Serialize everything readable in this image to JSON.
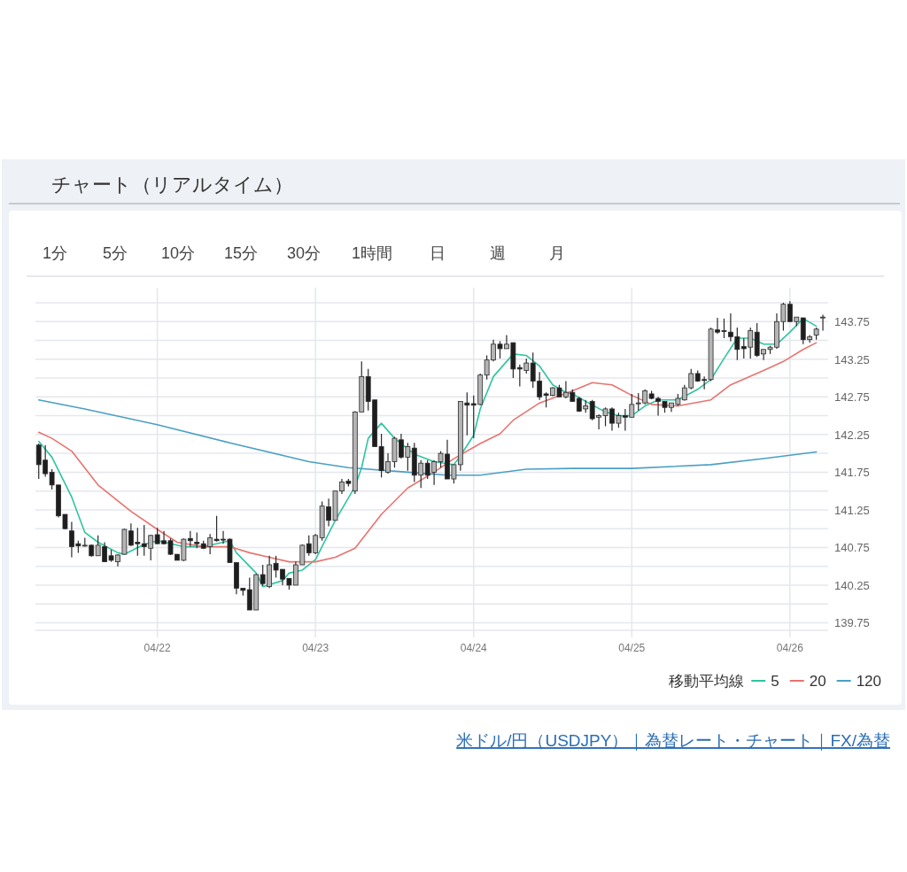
{
  "chart_data": {
    "type": "candlestick",
    "title": "チャート（リアルタイム）",
    "x": [
      "--04-21T06:00",
      "--04-21T07:00",
      "--04-21T08:00",
      "--04-21T09:00",
      "--04-21T10:00",
      "--04-21T11:00",
      "--04-21T12:00",
      "--04-21T13:00",
      "--04-21T14:00",
      "--04-21T15:00",
      "--04-21T16:00",
      "--04-21T17:00",
      "--04-21T18:00",
      "--04-21T19:00",
      "--04-21T20:00",
      "--04-21T21:00",
      "--04-21T22:00",
      "--04-21T23:00",
      "--04-22T00:00",
      "--04-22T01:00",
      "--04-22T02:00",
      "--04-22T03:00",
      "--04-22T04:00",
      "--04-22T05:00",
      "--04-22T06:00",
      "--04-22T07:00",
      "--04-22T08:00",
      "--04-22T09:00",
      "--04-22T10:00",
      "--04-22T11:00",
      "--04-22T12:00",
      "--04-22T13:00",
      "--04-22T14:00",
      "--04-22T15:00",
      "--04-22T16:00",
      "--04-22T17:00",
      "--04-22T18:00",
      "--04-22T19:00",
      "--04-22T20:00",
      "--04-22T21:00",
      "--04-22T22:00",
      "--04-22T23:00",
      "--04-23T00:00",
      "--04-23T01:00",
      "--04-23T02:00",
      "--04-23T03:00",
      "--04-23T04:00",
      "--04-23T05:00",
      "--04-23T06:00",
      "--04-23T07:00",
      "--04-23T08:00",
      "--04-23T09:00",
      "--04-23T10:00",
      "--04-23T11:00",
      "--04-23T12:00",
      "--04-23T13:00",
      "--04-23T14:00",
      "--04-23T15:00",
      "--04-23T16:00",
      "--04-23T17:00",
      "--04-23T18:00",
      "--04-23T19:00",
      "--04-23T20:00",
      "--04-23T21:00",
      "--04-23T22:00",
      "--04-23T23:00",
      "--04-24T00:00",
      "--04-24T01:00",
      "--04-24T02:00",
      "--04-24T03:00",
      "--04-24T04:00",
      "--04-24T05:00",
      "--04-24T06:00",
      "--04-24T07:00",
      "--04-24T08:00",
      "--04-24T09:00",
      "--04-24T10:00",
      "--04-24T11:00",
      "--04-24T12:00",
      "--04-24T13:00",
      "--04-24T14:00",
      "--04-24T15:00",
      "--04-24T16:00",
      "--04-24T17:00",
      "--04-24T18:00",
      "--04-24T19:00",
      "--04-24T20:00",
      "--04-24T21:00",
      "--04-24T22:00",
      "--04-24T23:00",
      "--04-25T00:00",
      "--04-25T01:00",
      "--04-25T02:00",
      "--04-25T03:00",
      "--04-25T04:00",
      "--04-25T05:00",
      "--04-25T06:00",
      "--04-25T07:00",
      "--04-25T08:00",
      "--04-25T09:00",
      "--04-25T10:00",
      "--04-25T11:00",
      "--04-25T12:00",
      "--04-25T13:00",
      "--04-25T14:00",
      "--04-25T15:00",
      "--04-25T16:00",
      "--04-25T17:00",
      "--04-25T18:00",
      "--04-25T19:00",
      "--04-25T20:00",
      "--04-25T21:00",
      "--04-25T22:00",
      "--04-25T23:00",
      "--04-26T00:00",
      "--04-26T01:00",
      "--04-26T02:00",
      "--04-26T03:00",
      "--04-26T04:00",
      "--04-26T05:00"
    ],
    "ohlc": [
      [
        142.11,
        142.13,
        141.66,
        141.85
      ],
      [
        141.91,
        142.11,
        141.69,
        141.73
      ],
      [
        141.75,
        141.79,
        141.52,
        141.58
      ],
      [
        141.58,
        141.58,
        141.15,
        141.17
      ],
      [
        141.19,
        141.19,
        140.99,
        141.0
      ],
      [
        140.97,
        141.09,
        140.62,
        140.76
      ],
      [
        140.8,
        140.84,
        140.68,
        140.77
      ],
      [
        140.77,
        140.88,
        140.76,
        140.78
      ],
      [
        140.78,
        140.79,
        140.63,
        140.64
      ],
      [
        140.64,
        140.91,
        140.64,
        140.78
      ],
      [
        140.76,
        140.82,
        140.56,
        140.56
      ],
      [
        140.64,
        140.72,
        140.56,
        140.58
      ],
      [
        140.56,
        140.66,
        140.5,
        140.65
      ],
      [
        140.66,
        141.0,
        140.66,
        140.99
      ],
      [
        140.97,
        141.07,
        140.77,
        140.78
      ],
      [
        140.82,
        141.01,
        140.64,
        140.8
      ],
      [
        140.8,
        141.05,
        140.64,
        140.76
      ],
      [
        140.74,
        140.92,
        140.58,
        140.91
      ],
      [
        140.92,
        141.01,
        140.8,
        140.8
      ],
      [
        140.84,
        140.97,
        140.79,
        140.8
      ],
      [
        140.84,
        140.87,
        140.65,
        140.66
      ],
      [
        140.66,
        140.66,
        140.58,
        140.58
      ],
      [
        140.58,
        140.87,
        140.57,
        140.86
      ],
      [
        140.87,
        140.97,
        140.76,
        140.84
      ],
      [
        140.82,
        140.95,
        140.74,
        140.8
      ],
      [
        140.8,
        140.84,
        140.73,
        140.74
      ],
      [
        140.76,
        140.93,
        140.66,
        140.88
      ],
      [
        140.86,
        141.17,
        140.83,
        140.84
      ],
      [
        140.86,
        140.97,
        140.8,
        140.85
      ],
      [
        140.86,
        140.87,
        140.55,
        140.55
      ],
      [
        140.55,
        140.55,
        140.13,
        140.21
      ],
      [
        140.21,
        140.21,
        140.11,
        140.18
      ],
      [
        140.19,
        140.35,
        139.92,
        139.92
      ],
      [
        139.92,
        140.4,
        139.92,
        140.39
      ],
      [
        140.39,
        140.52,
        140.24,
        140.27
      ],
      [
        140.23,
        140.64,
        140.21,
        140.52
      ],
      [
        140.54,
        140.64,
        140.35,
        140.45
      ],
      [
        140.46,
        140.46,
        140.25,
        140.33
      ],
      [
        140.34,
        140.34,
        140.19,
        140.25
      ],
      [
        140.25,
        140.56,
        140.25,
        140.52
      ],
      [
        140.52,
        140.79,
        140.52,
        140.78
      ],
      [
        140.8,
        140.91,
        140.64,
        140.68
      ],
      [
        140.68,
        140.93,
        140.66,
        140.91
      ],
      [
        140.88,
        141.36,
        140.84,
        141.3
      ],
      [
        141.29,
        141.4,
        141.03,
        141.11
      ],
      [
        141.11,
        141.5,
        141.11,
        141.5
      ],
      [
        141.5,
        141.66,
        141.46,
        141.62
      ],
      [
        141.63,
        141.66,
        141.56,
        141.6
      ],
      [
        141.5,
        142.56,
        141.46,
        142.55
      ],
      [
        142.55,
        143.22,
        142.55,
        143.02
      ],
      [
        143.02,
        143.12,
        142.57,
        142.69
      ],
      [
        142.71,
        142.71,
        142.09,
        142.09
      ],
      [
        142.09,
        142.26,
        141.68,
        141.77
      ],
      [
        141.75,
        142.0,
        141.73,
        141.89
      ],
      [
        141.89,
        142.22,
        141.81,
        142.2
      ],
      [
        142.18,
        142.26,
        141.93,
        141.95
      ],
      [
        141.95,
        142.14,
        141.77,
        142.09
      ],
      [
        142.07,
        142.14,
        141.62,
        141.71
      ],
      [
        141.71,
        141.91,
        141.54,
        141.87
      ],
      [
        141.87,
        141.91,
        141.66,
        141.71
      ],
      [
        141.75,
        141.91,
        141.58,
        141.89
      ],
      [
        141.89,
        142.03,
        141.81,
        142.0
      ],
      [
        141.99,
        142.18,
        141.66,
        141.66
      ],
      [
        141.66,
        141.85,
        141.6,
        141.85
      ],
      [
        141.85,
        142.69,
        141.77,
        142.69
      ],
      [
        142.67,
        142.81,
        142.24,
        142.64
      ],
      [
        142.66,
        142.77,
        142.2,
        142.64
      ],
      [
        142.65,
        143.06,
        142.64,
        143.04
      ],
      [
        143.04,
        143.3,
        142.98,
        143.24
      ],
      [
        143.24,
        143.51,
        143.22,
        143.45
      ],
      [
        143.45,
        143.49,
        143.26,
        143.39
      ],
      [
        143.39,
        143.57,
        143.39,
        143.45
      ],
      [
        143.47,
        143.47,
        143.0,
        143.12
      ],
      [
        143.14,
        143.18,
        142.89,
        143.12
      ],
      [
        143.1,
        143.26,
        143.06,
        143.2
      ],
      [
        143.2,
        143.34,
        142.87,
        142.96
      ],
      [
        142.96,
        143.08,
        142.71,
        142.75
      ],
      [
        142.79,
        142.81,
        142.61,
        142.77
      ],
      [
        142.77,
        142.88,
        142.76,
        142.87
      ],
      [
        142.87,
        142.91,
        142.75,
        142.75
      ],
      [
        142.75,
        142.96,
        142.73,
        142.81
      ],
      [
        142.81,
        142.85,
        142.69,
        142.69
      ],
      [
        142.73,
        142.75,
        142.55,
        142.56
      ],
      [
        142.59,
        142.71,
        142.54,
        142.63
      ],
      [
        142.69,
        142.71,
        142.44,
        142.46
      ],
      [
        142.48,
        142.52,
        142.32,
        142.5
      ],
      [
        142.5,
        142.61,
        142.36,
        142.59
      ],
      [
        142.59,
        142.61,
        142.3,
        142.4
      ],
      [
        142.4,
        142.54,
        142.34,
        142.5
      ],
      [
        142.5,
        142.59,
        142.3,
        142.48
      ],
      [
        142.48,
        142.79,
        142.48,
        142.65
      ],
      [
        142.66,
        142.8,
        142.57,
        142.67
      ],
      [
        142.67,
        142.85,
        142.65,
        142.83
      ],
      [
        142.79,
        142.83,
        142.72,
        142.73
      ],
      [
        142.73,
        142.75,
        142.5,
        142.69
      ],
      [
        142.69,
        142.69,
        142.54,
        142.61
      ],
      [
        142.61,
        142.67,
        142.55,
        142.67
      ],
      [
        142.65,
        142.79,
        142.63,
        142.73
      ],
      [
        142.71,
        142.91,
        142.7,
        142.87
      ],
      [
        142.87,
        143.12,
        142.85,
        143.06
      ],
      [
        143.06,
        143.1,
        142.95,
        142.96
      ],
      [
        142.98,
        143.02,
        142.85,
        142.97
      ],
      [
        142.98,
        143.67,
        142.96,
        143.65
      ],
      [
        143.64,
        143.8,
        143.59,
        143.61
      ],
      [
        143.63,
        143.79,
        143.53,
        143.62
      ],
      [
        143.61,
        143.86,
        143.49,
        143.55
      ],
      [
        143.55,
        143.67,
        143.24,
        143.38
      ],
      [
        143.42,
        143.53,
        143.26,
        143.39
      ],
      [
        143.41,
        143.67,
        143.26,
        143.63
      ],
      [
        143.61,
        143.73,
        143.28,
        143.3
      ],
      [
        143.32,
        143.38,
        143.24,
        143.38
      ],
      [
        143.38,
        143.43,
        143.32,
        143.41
      ],
      [
        143.41,
        143.86,
        143.39,
        143.75
      ],
      [
        143.75,
        144.0,
        143.63,
        143.98
      ],
      [
        143.98,
        144.02,
        143.75,
        143.75
      ],
      [
        143.75,
        143.81,
        143.69,
        143.81
      ],
      [
        143.8,
        143.8,
        143.45,
        143.51
      ],
      [
        143.51,
        143.57,
        143.47,
        143.55
      ],
      [
        143.57,
        143.67,
        143.51,
        143.65
      ],
      [
        143.8,
        143.84,
        143.63,
        143.81
      ]
    ],
    "series": [
      {
        "name": "5",
        "type": "line",
        "color": "#2ec4a0",
        "x": [
          "--04-21T06:00",
          "--04-21T08:00",
          "--04-21T11:00",
          "--04-21T13:00",
          "--04-21T15:00",
          "--04-21T18:00",
          "--04-21T19:00",
          "--04-21T22:00",
          "--04-22T00:00",
          "--04-22T04:00",
          "--04-22T07:00",
          "--04-22T10:00",
          "--04-22T11:00",
          "--04-22T12:00",
          "--04-22T15:00",
          "--04-22T16:00",
          "--04-22T19:00",
          "--04-22T20:00",
          "--04-22T22:00",
          "--04-23T00:00",
          "--04-23T03:00",
          "--04-23T06:00",
          "--04-23T07:00",
          "--04-23T08:00",
          "--04-23T10:00",
          "--04-23T12:00",
          "--04-23T15:00",
          "--04-23T18:00",
          "--04-23T21:00",
          "--04-23T22:00",
          "--04-24T00:00",
          "--04-24T01:00",
          "--04-24T03:00",
          "--04-24T06:00",
          "--04-24T08:00",
          "--04-24T10:00",
          "--04-24T12:00",
          "--04-24T14:00",
          "--04-24T15:00",
          "--04-24T17:00",
          "--04-24T20:00",
          "--04-24T22:00",
          "--04-25T00:00",
          "--04-25T02:00",
          "--04-25T04:00",
          "--04-25T07:00",
          "--04-25T10:00",
          "--04-25T12:00",
          "--04-25T14:00",
          "--04-25T16:00",
          "--04-25T18:00",
          "--04-25T20:00",
          "--04-25T22:00",
          "--04-26T00:00",
          "--04-26T02:00",
          "--04-26T04:00"
        ],
        "values": [
          142.16,
          141.95,
          141.42,
          140.95,
          140.82,
          140.68,
          140.66,
          140.79,
          140.84,
          140.76,
          140.76,
          140.82,
          140.84,
          140.68,
          140.41,
          140.23,
          140.31,
          140.41,
          140.45,
          140.59,
          141.11,
          141.56,
          141.81,
          142.2,
          142.4,
          142.2,
          141.99,
          141.89,
          141.85,
          141.97,
          142.24,
          142.59,
          143.02,
          143.32,
          143.3,
          143.16,
          142.91,
          142.81,
          142.79,
          142.69,
          142.55,
          142.5,
          142.5,
          142.63,
          142.71,
          142.71,
          142.85,
          142.98,
          143.26,
          143.53,
          143.53,
          143.45,
          143.45,
          143.61,
          143.79,
          143.69
        ]
      },
      {
        "name": "20",
        "type": "line",
        "color": "#e8736f",
        "x": [
          "--04-21T06:00",
          "--04-21T08:00",
          "--04-21T11:00",
          "--04-21T15:00",
          "--04-21T20:00",
          "--04-22T00:00",
          "--04-22T03:00",
          "--04-22T07:00",
          "--04-22T11:00",
          "--04-22T14:00",
          "--04-22T17:00",
          "--04-22T20:00",
          "--04-23T00:00",
          "--04-23T03:00",
          "--04-23T06:00",
          "--04-23T10:00",
          "--04-23T14:00",
          "--04-23T18:00",
          "--04-23T21:00",
          "--04-24T01:00",
          "--04-24T04:00",
          "--04-24T06:00",
          "--04-24T10:00",
          "--04-24T15:00",
          "--04-24T18:00",
          "--04-24T21:00",
          "--04-25T00:00",
          "--04-25T03:00",
          "--04-25T07:00",
          "--04-25T12:00",
          "--04-25T15:00",
          "--04-25T20:00",
          "--04-25T23:00",
          "--04-26T02:00",
          "--04-26T04:00"
        ],
        "values": [
          142.28,
          142.2,
          142.03,
          141.58,
          141.23,
          140.99,
          140.82,
          140.76,
          140.76,
          140.68,
          140.62,
          140.56,
          140.56,
          140.62,
          140.74,
          141.19,
          141.54,
          141.75,
          141.93,
          142.13,
          142.26,
          142.44,
          142.67,
          142.83,
          142.94,
          142.91,
          142.77,
          142.65,
          142.63,
          142.71,
          142.91,
          143.1,
          143.22,
          143.38,
          143.47
        ]
      },
      {
        "name": "120",
        "type": "line",
        "color": "#4a9fc4",
        "x": [
          "--04-21T06:00",
          "--04-21T13:00",
          "--04-22T00:00",
          "--04-22T11:00",
          "--04-22T23:00",
          "--04-23T05:00",
          "--04-23T14:00",
          "--04-23T20:00",
          "--04-24T01:00",
          "--04-24T08:00",
          "--04-24T15:00",
          "--04-25T00:00",
          "--04-25T12:00",
          "--04-25T20:00",
          "--04-26T04:00"
        ],
        "values": [
          142.71,
          142.59,
          142.38,
          142.14,
          141.89,
          141.81,
          141.75,
          141.71,
          141.71,
          141.79,
          141.8,
          141.8,
          141.85,
          141.93,
          142.02
        ]
      }
    ],
    "xlim": [
      "--04-21T05:30",
      "--04-26T05:48"
    ],
    "xticks": [
      {
        "value": "--04-22",
        "label": "04/22"
      },
      {
        "value": "--04-23",
        "label": "04/23"
      },
      {
        "value": "--04-24",
        "label": "04/24"
      },
      {
        "value": "--04-25",
        "label": "04/25"
      },
      {
        "value": "--04-26",
        "label": "04/26"
      }
    ],
    "ylim": [
      139.65,
      144.2
    ],
    "yticks": [
      139.75,
      {
        "value": 140.0,
        "label": null
      },
      140.25,
      {
        "value": 140.5,
        "label": null
      },
      140.75,
      {
        "value": 141.0,
        "label": null
      },
      141.25,
      {
        "value": 141.5,
        "label": null
      },
      141.75,
      {
        "value": 142.0,
        "label": null
      },
      142.25,
      {
        "value": 142.5,
        "label": null
      },
      142.75,
      {
        "value": 143.0,
        "label": null
      },
      143.25,
      {
        "value": 143.5,
        "label": null
      },
      143.75,
      {
        "value": 144.0,
        "label": null
      }
    ],
    "grid": true,
    "legend": "bottom right",
    "legend_title": "移動平均線",
    "annotations": [
      "1分",
      "5分",
      "10分",
      "15分",
      "30分",
      "1時間",
      "日",
      "週",
      "月",
      "米ドル/円（USDJPY）｜為替レート・チャート｜FX/為替"
    ]
  }
}
